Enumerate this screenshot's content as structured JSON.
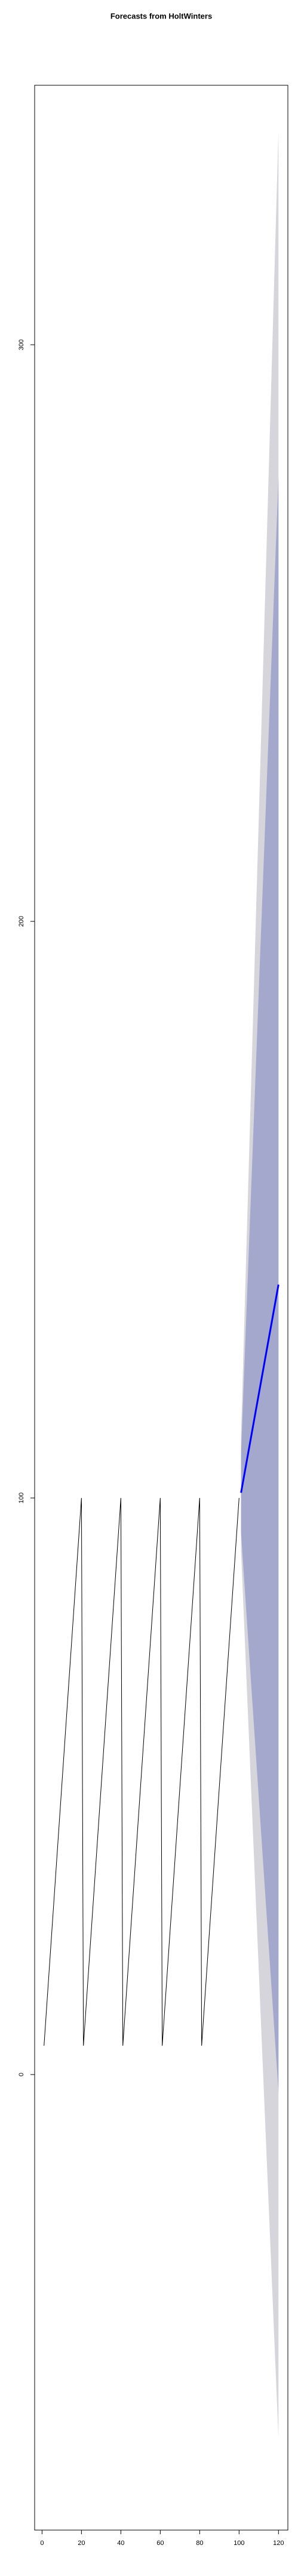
{
  "chart_data": {
    "type": "forecast",
    "title": "Forecasts from HoltWinters",
    "x": [
      1,
      2,
      3,
      4,
      5,
      6,
      7,
      8,
      9,
      10,
      11,
      12,
      13,
      14,
      15,
      16,
      17,
      18,
      19,
      20,
      21,
      22,
      23,
      24,
      25,
      26,
      27,
      28,
      29,
      30,
      31,
      32,
      33,
      34,
      35,
      36,
      37,
      38,
      39,
      40,
      41,
      42,
      43,
      44,
      45,
      46,
      47,
      48,
      49,
      50,
      51,
      52,
      53,
      54,
      55,
      56,
      57,
      58,
      59,
      60,
      61,
      62,
      63,
      64,
      65,
      66,
      67,
      68,
      69,
      70,
      71,
      72,
      73,
      74,
      75,
      76,
      77,
      78,
      79,
      80,
      81,
      82,
      83,
      84,
      85,
      86,
      87,
      88,
      89,
      90,
      91,
      92,
      93,
      94,
      95,
      96,
      97,
      98,
      99,
      100
    ],
    "values": [
      5,
      10,
      15,
      20,
      25,
      30,
      35,
      40,
      45,
      50,
      55,
      60,
      65,
      70,
      75,
      80,
      85,
      90,
      95,
      100,
      5,
      10,
      15,
      20,
      25,
      30,
      35,
      40,
      45,
      50,
      55,
      60,
      65,
      70,
      75,
      80,
      85,
      90,
      95,
      100,
      5,
      10,
      15,
      20,
      25,
      30,
      35,
      40,
      45,
      50,
      55,
      60,
      65,
      70,
      75,
      80,
      85,
      90,
      95,
      100,
      5,
      10,
      15,
      20,
      25,
      30,
      35,
      40,
      45,
      50,
      55,
      60,
      65,
      70,
      75,
      80,
      85,
      90,
      95,
      100,
      5,
      10,
      15,
      20,
      25,
      30,
      35,
      40,
      45,
      50,
      55,
      60,
      65,
      70,
      75,
      80,
      85,
      90,
      95,
      100
    ],
    "color": "#000000",
    "forecast": {
      "x": [
        101,
        102,
        103,
        104,
        105,
        106,
        107,
        108,
        109,
        110,
        111,
        112,
        113,
        114,
        115,
        116,
        117,
        118,
        119,
        120
      ],
      "mean": [
        100.9,
        102.8,
        104.7,
        106.6,
        108.5,
        110.4,
        112.3,
        114.2,
        116.1,
        118,
        119.9,
        121.8,
        123.7,
        125.6,
        127.5,
        129.4,
        131.3,
        133.2,
        135.1,
        137
      ],
      "lo80": [
        93.9,
        88.8,
        83.7,
        78.6,
        73.5,
        68.4,
        63.3,
        58.2,
        53.1,
        48,
        42.9,
        37.8,
        32.7,
        27.6,
        22.5,
        17.4,
        12.3,
        7.2,
        2.1,
        -3
      ],
      "hi80": [
        107.9,
        116.8,
        125.7,
        134.6,
        143.5,
        152.4,
        161.3,
        170.2,
        179.1,
        188,
        196.9,
        205.8,
        214.7,
        223.6,
        232.5,
        241.4,
        250.3,
        259.2,
        268.1,
        277
      ],
      "lo95": [
        90.9,
        82.8,
        74.7,
        66.6,
        58.5,
        50.4,
        42.3,
        34.2,
        26.1,
        18,
        9.9,
        1.8,
        -6.3,
        -14.4,
        -22.5,
        -30.6,
        -38.7,
        -46.8,
        -54.9,
        -63
      ],
      "hi95": [
        110.9,
        122.8,
        134.7,
        146.6,
        158.5,
        170.4,
        182.3,
        194.2,
        206.1,
        218,
        229.9,
        241.8,
        253.7,
        265.6,
        277.5,
        289.4,
        301.3,
        313.2,
        325.1,
        337
      ],
      "mean_color": "#0000ff",
      "band80_color": "#a4a8cc",
      "band95_color": "#d6d5dc"
    },
    "xlim": [
      -3.76,
      124.76
    ],
    "ylim": [
      -79,
      345
    ],
    "xticks": [
      0,
      20,
      40,
      60,
      80,
      100,
      120
    ],
    "yticks": [
      0,
      100,
      200,
      300
    ]
  }
}
